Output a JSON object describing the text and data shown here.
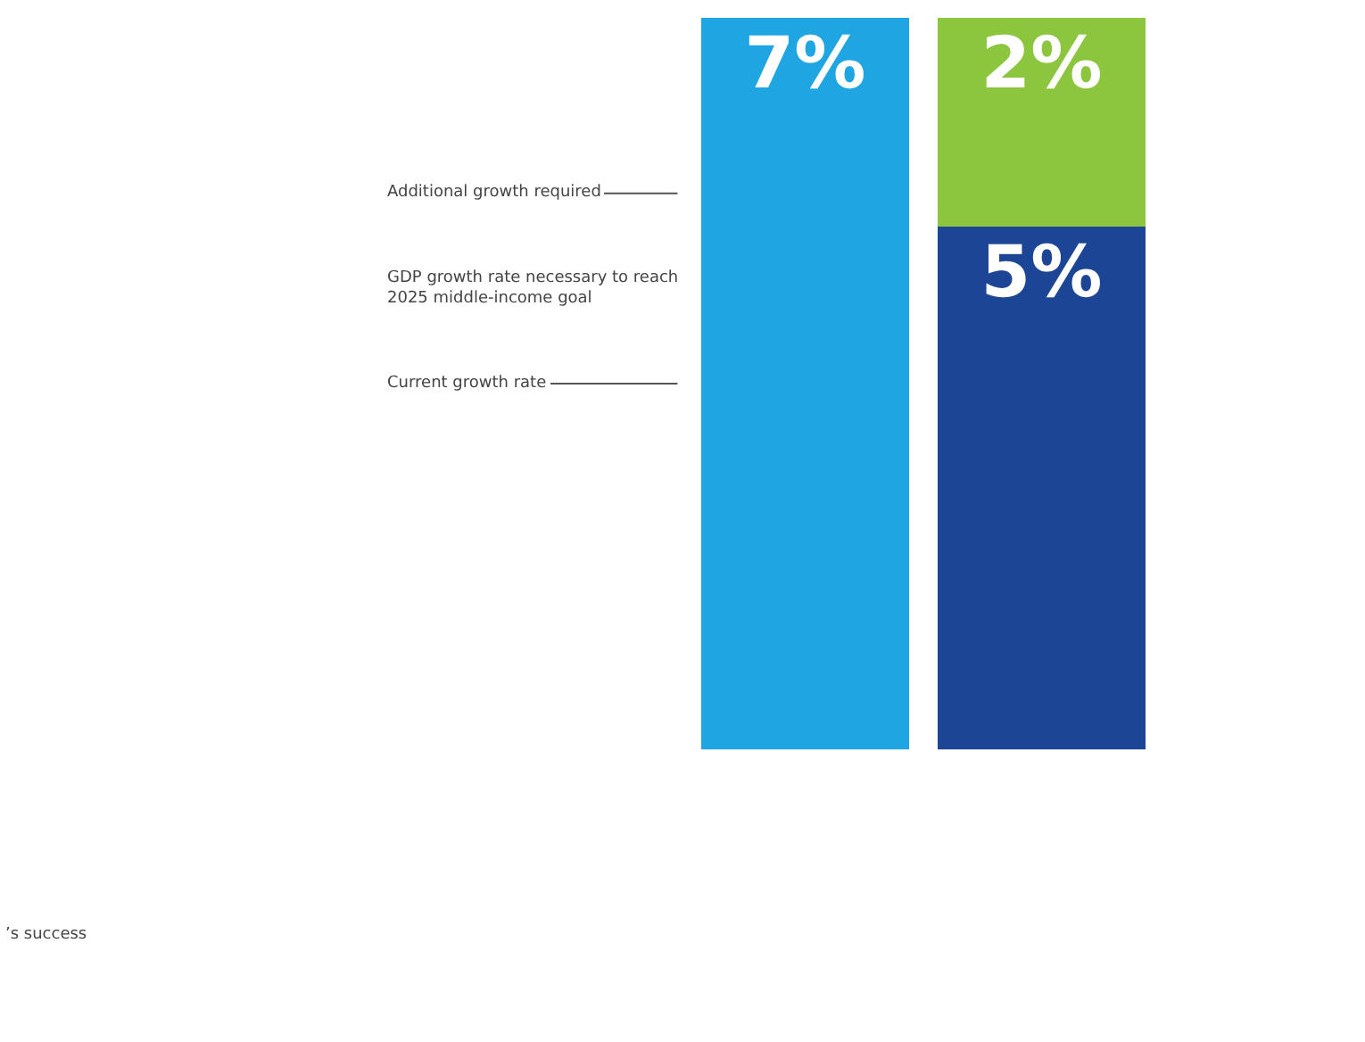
{
  "chart_data": {
    "type": "bar",
    "stacked": true,
    "categories": [
      null,
      null
    ],
    "series": [
      {
        "colors": [
          "#1fa6e2",
          "#1c4595"
        ],
        "values": [
          7,
          5
        ],
        "value_labels": [
          "7%",
          "5%"
        ]
      },
      {
        "color": "#8cc63f",
        "values": [
          null,
          2
        ],
        "value_labels": [
          null,
          "2%"
        ]
      }
    ],
    "ylim": [
      0,
      7
    ],
    "tick_labels": false,
    "annotations": [
      "Additional growth required",
      "GDP growth rate necessary to reach\n2025 middle-income goal",
      "Current growth rate",
      "’s success"
    ]
  }
}
